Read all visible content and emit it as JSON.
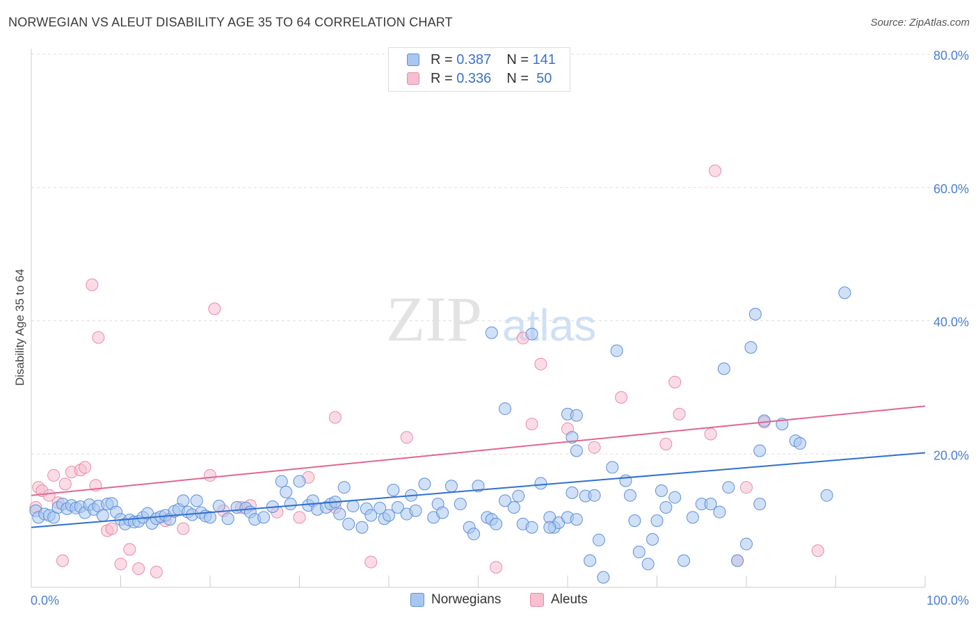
{
  "title": "NORWEGIAN VS ALEUT DISABILITY AGE 35 TO 64 CORRELATION CHART",
  "source": "Source: ZipAtlas.com",
  "watermark": {
    "zip": "ZIP",
    "atlas": "atlas"
  },
  "legend": {
    "rows": [
      {
        "r_label": "R =",
        "r_value": "0.387",
        "n_label": "N =",
        "n_value": "141"
      },
      {
        "r_label": "R =",
        "r_value": "0.336",
        "n_label": "N =",
        "n_value": "50"
      }
    ]
  },
  "bottom_legend": {
    "norwegians": "Norwegians",
    "aleuts": "Aleuts"
  },
  "colors": {
    "blue_fill": "#a9c6f0",
    "blue_stroke": "#5b8fd9",
    "blue_line": "#2f6fd1",
    "pink_fill": "#f7bfd0",
    "pink_stroke": "#e88aa8",
    "pink_line": "#e0668f",
    "grid": "#dddddd",
    "tick_text": "#4a7fd0"
  },
  "chart_data": {
    "type": "scatter",
    "title": "NORWEGIAN VS ALEUT DISABILITY AGE 35 TO 64 CORRELATION CHART",
    "xlabel": "",
    "ylabel": "Disability Age 35 to 64",
    "xlim": [
      0,
      100
    ],
    "ylim": [
      0,
      82
    ],
    "x_tick_labels": [
      "0.0%",
      "100.0%"
    ],
    "y_ticks": [
      20,
      40,
      60,
      80
    ],
    "y_tick_labels": [
      "20.0%",
      "40.0%",
      "60.0%",
      "80.0%"
    ],
    "grid": true,
    "series": [
      {
        "name": "Norwegians",
        "trend": {
          "x": [
            0,
            100
          ],
          "y": [
            9.0,
            20.2
          ]
        },
        "points": [
          [
            0.5,
            11.5
          ],
          [
            0.8,
            10.5
          ],
          [
            1.5,
            11
          ],
          [
            2,
            10.8
          ],
          [
            2.5,
            10.5
          ],
          [
            3,
            12
          ],
          [
            3.5,
            12.5
          ],
          [
            4,
            11.8
          ],
          [
            4.5,
            12.3
          ],
          [
            5,
            11.9
          ],
          [
            5.5,
            12.1
          ],
          [
            6,
            11.2
          ],
          [
            6.5,
            12.4
          ],
          [
            7,
            11.7
          ],
          [
            7.5,
            12.2
          ],
          [
            8,
            10.8
          ],
          [
            8.5,
            12.5
          ],
          [
            9,
            12.6
          ],
          [
            9.5,
            11.3
          ],
          [
            10,
            10.2
          ],
          [
            10.5,
            9.5
          ],
          [
            11,
            10.1
          ],
          [
            11.5,
            9.8
          ],
          [
            12,
            9.9
          ],
          [
            12.5,
            10.5
          ],
          [
            13,
            11.1
          ],
          [
            13.5,
            9.6
          ],
          [
            14,
            10.3
          ],
          [
            14.5,
            10.6
          ],
          [
            15,
            10.8
          ],
          [
            15.5,
            10.2
          ],
          [
            16,
            11.4
          ],
          [
            16.5,
            11.7
          ],
          [
            17,
            13
          ],
          [
            17.5,
            11.3
          ],
          [
            18,
            10.9
          ],
          [
            18.5,
            13
          ],
          [
            19,
            11.2
          ],
          [
            19.5,
            10.7
          ],
          [
            20,
            10.5
          ],
          [
            21,
            12.2
          ],
          [
            22,
            10.3
          ],
          [
            23,
            12
          ],
          [
            24,
            11.9
          ],
          [
            24.5,
            11.3
          ],
          [
            25,
            10.2
          ],
          [
            26,
            10.5
          ],
          [
            27,
            12.1
          ],
          [
            28,
            15.9
          ],
          [
            28.5,
            14.3
          ],
          [
            29,
            12.5
          ],
          [
            30,
            15.9
          ],
          [
            31,
            12.3
          ],
          [
            31.5,
            13
          ],
          [
            32,
            11.7
          ],
          [
            33,
            12
          ],
          [
            33.5,
            12.5
          ],
          [
            34,
            12.8
          ],
          [
            34.5,
            11
          ],
          [
            35,
            15
          ],
          [
            35.5,
            9.5
          ],
          [
            36,
            12.2
          ],
          [
            37,
            9
          ],
          [
            37.5,
            11.8
          ],
          [
            38,
            10.8
          ],
          [
            39,
            11.9
          ],
          [
            39.5,
            10.3
          ],
          [
            40,
            10.8
          ],
          [
            40.5,
            14.6
          ],
          [
            41,
            12
          ],
          [
            42,
            11
          ],
          [
            42.5,
            13.8
          ],
          [
            43,
            11.5
          ],
          [
            44,
            15.5
          ],
          [
            45,
            10.5
          ],
          [
            45.5,
            12.5
          ],
          [
            46,
            11.2
          ],
          [
            47,
            15.2
          ],
          [
            48,
            12.5
          ],
          [
            49,
            9
          ],
          [
            49.5,
            8
          ],
          [
            50,
            15.2
          ],
          [
            51,
            10.5
          ],
          [
            51.5,
            10.2
          ],
          [
            52,
            9.5
          ],
          [
            53,
            13
          ],
          [
            54,
            12
          ],
          [
            54.5,
            13.7
          ],
          [
            55,
            9.5
          ],
          [
            56,
            9
          ],
          [
            57,
            15.6
          ],
          [
            58,
            10.5
          ],
          [
            58.5,
            9
          ],
          [
            59,
            9.7
          ],
          [
            60,
            10.5
          ],
          [
            60.5,
            14.2
          ],
          [
            61,
            10.2
          ],
          [
            62,
            13.7
          ],
          [
            63,
            13.8
          ],
          [
            51.5,
            38.2
          ],
          [
            53,
            26.8
          ],
          [
            56,
            38
          ],
          [
            60,
            26
          ],
          [
            60.5,
            22.5
          ],
          [
            61,
            25.8
          ],
          [
            65,
            18
          ],
          [
            65.5,
            35.5
          ],
          [
            66.5,
            16
          ],
          [
            67,
            13.8
          ],
          [
            67.5,
            10
          ],
          [
            68,
            5.3
          ],
          [
            69,
            3.5
          ],
          [
            69.5,
            7.2
          ],
          [
            70,
            10
          ],
          [
            70.5,
            14.5
          ],
          [
            71,
            12
          ],
          [
            72,
            13.5
          ],
          [
            74,
            10.5
          ],
          [
            75,
            12.5
          ],
          [
            76,
            12.5
          ],
          [
            77,
            11.3
          ],
          [
            78,
            15
          ],
          [
            58,
            9
          ],
          [
            62.5,
            4
          ],
          [
            63.5,
            7.1
          ],
          [
            64,
            1.5
          ],
          [
            73,
            4
          ],
          [
            80.5,
            36
          ],
          [
            81,
            41
          ],
          [
            81.5,
            12.5
          ],
          [
            82,
            25
          ],
          [
            84,
            24.5
          ],
          [
            85.5,
            22
          ],
          [
            86,
            21.6
          ],
          [
            89,
            13.8
          ],
          [
            91,
            44.2
          ],
          [
            77.5,
            32.8
          ],
          [
            79,
            4
          ],
          [
            80,
            6.5
          ],
          [
            81.5,
            20.5
          ],
          [
            61,
            20.5
          ]
        ]
      },
      {
        "name": "Aleuts",
        "trend": {
          "x": [
            0,
            100
          ],
          "y": [
            13.8,
            27.2
          ]
        },
        "points": [
          [
            0.5,
            12
          ],
          [
            0.8,
            15
          ],
          [
            1.2,
            14.5
          ],
          [
            2,
            13.8
          ],
          [
            2.5,
            16.8
          ],
          [
            3,
            12.7
          ],
          [
            3.8,
            15.5
          ],
          [
            4.5,
            17.3
          ],
          [
            5.5,
            17.6
          ],
          [
            6,
            18
          ],
          [
            7.2,
            15.3
          ],
          [
            6.8,
            45.4
          ],
          [
            7.5,
            37.5
          ],
          [
            8.5,
            8.5
          ],
          [
            9,
            8.8
          ],
          [
            10,
            3.5
          ],
          [
            11,
            5.7
          ],
          [
            12,
            2.8
          ],
          [
            14,
            2.3
          ],
          [
            15,
            10
          ],
          [
            17,
            8.8
          ],
          [
            20,
            16.8
          ],
          [
            21.5,
            11.5
          ],
          [
            20.5,
            41.8
          ],
          [
            23.5,
            12
          ],
          [
            24.5,
            12.3
          ],
          [
            27.5,
            11.3
          ],
          [
            30,
            10.5
          ],
          [
            31,
            16.5
          ],
          [
            34,
            25.5
          ],
          [
            38,
            3.8
          ],
          [
            3.5,
            4
          ],
          [
            34,
            12
          ],
          [
            42,
            22.5
          ],
          [
            52,
            3
          ],
          [
            55,
            37.4
          ],
          [
            56,
            24.5
          ],
          [
            57,
            33.5
          ],
          [
            60,
            23.8
          ],
          [
            63,
            21
          ],
          [
            66,
            28.5
          ],
          [
            71,
            21.5
          ],
          [
            72,
            30.8
          ],
          [
            72.5,
            26
          ],
          [
            76,
            23
          ],
          [
            79,
            4
          ],
          [
            80,
            15
          ],
          [
            82,
            24.8
          ],
          [
            88,
            5.5
          ],
          [
            76.5,
            62.5
          ]
        ]
      }
    ]
  }
}
